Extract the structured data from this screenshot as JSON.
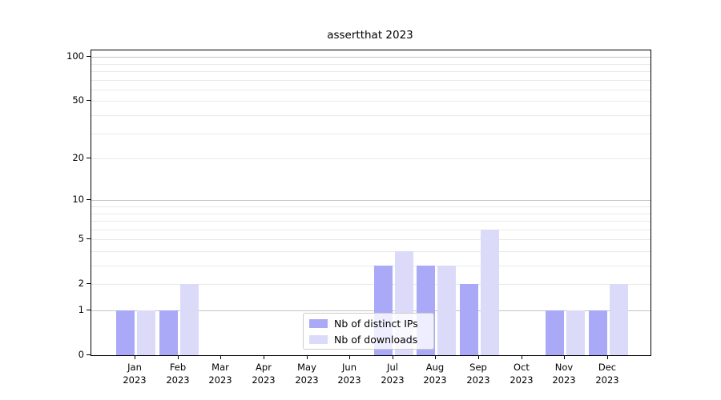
{
  "title": "assertthat 2023",
  "chart_data": {
    "type": "bar",
    "title": "assertthat 2023",
    "categories": [
      "Jan 2023",
      "Feb 2023",
      "Mar 2023",
      "Apr 2023",
      "May 2023",
      "Jun 2023",
      "Jul 2023",
      "Aug 2023",
      "Sep 2023",
      "Oct 2023",
      "Nov 2023",
      "Dec 2023"
    ],
    "x_tick_month": [
      "Jan",
      "Feb",
      "Mar",
      "Apr",
      "May",
      "Jun",
      "Jul",
      "Aug",
      "Sep",
      "Oct",
      "Nov",
      "Dec"
    ],
    "x_tick_year": "2023",
    "series": [
      {
        "name": "Nb of distinct IPs",
        "color": "#a9a9f7",
        "values": [
          1,
          1,
          0,
          0,
          0,
          0,
          3,
          3,
          2,
          0,
          1,
          1
        ]
      },
      {
        "name": "Nb of downloads",
        "color": "#dbdbf9",
        "values": [
          1,
          2,
          0,
          0,
          0,
          0,
          4,
          3,
          6,
          0,
          1,
          2
        ]
      }
    ],
    "y_axis": {
      "tick_values": [
        0,
        1,
        2,
        5,
        10,
        20,
        50,
        100
      ],
      "tick_labels": [
        "0",
        "1",
        "2",
        "5",
        "10",
        "20",
        "50",
        "100"
      ],
      "scale": "log10(1+x)",
      "range": [
        0,
        110
      ]
    },
    "grid": {
      "on": true,
      "major_at": [
        1,
        10,
        100
      ],
      "minor_at": [
        2,
        3,
        4,
        5,
        6,
        7,
        8,
        9,
        20,
        30,
        40,
        50,
        60,
        70,
        80,
        90
      ]
    },
    "legend": {
      "position": "inside-bottom-center"
    },
    "colors": {
      "major_grid": "#c4c4c4",
      "minor_grid": "#e9e9e9",
      "axis": "#000000",
      "background": "#ffffff"
    }
  }
}
